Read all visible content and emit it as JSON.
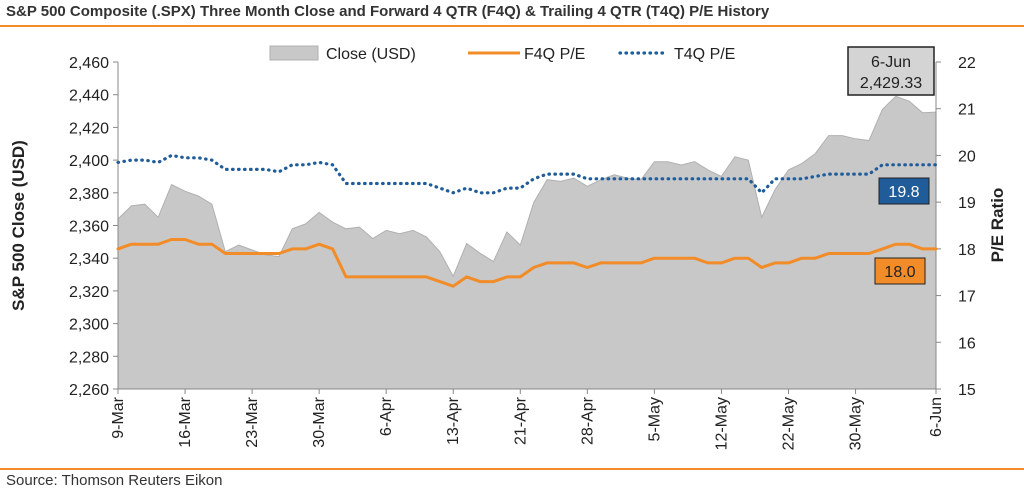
{
  "title": "S&P 500 Composite (.SPX) Three Month Close and Forward 4 QTR (F4Q) & Trailing 4 QTR (T4Q) P/E History",
  "source": "Source: Thomson Reuters Eikon",
  "chart_data": {
    "type": "area",
    "xlabel": "",
    "ylabel": "S&P 500 Close (USD)",
    "y2label": "P/E Ratio",
    "ylim": [
      2260,
      2460
    ],
    "y2lim": [
      15,
      22
    ],
    "yticks": [
      "2,260",
      "2,280",
      "2,300",
      "2,320",
      "2,340",
      "2,360",
      "2,380",
      "2,400",
      "2,420",
      "2,440",
      "2,460"
    ],
    "y2ticks": [
      "15",
      "16",
      "17",
      "18",
      "19",
      "20",
      "21",
      "22"
    ],
    "xtick_labels": [
      "9-Mar",
      "16-Mar",
      "23-Mar",
      "30-Mar",
      "6-Apr",
      "13-Apr",
      "21-Apr",
      "28-Apr",
      "5-May",
      "12-May",
      "22-May",
      "30-May",
      "6-Jun"
    ],
    "xtick_index": [
      0,
      5,
      10,
      15,
      20,
      25,
      30,
      35,
      40,
      45,
      50,
      55,
      61
    ],
    "legend_position": "top",
    "series": [
      {
        "name": "Close (USD)",
        "axis": "left",
        "style": "area",
        "color": "#c8c8c8",
        "values": [
          2364,
          2372,
          2373,
          2365,
          2385,
          2381,
          2378,
          2373,
          2344,
          2348,
          2345,
          2342,
          2341,
          2358,
          2361,
          2368,
          2362,
          2358,
          2359,
          2352,
          2357,
          2355,
          2357,
          2353,
          2344,
          2329,
          2349,
          2343,
          2338,
          2356,
          2348,
          2374,
          2388,
          2387,
          2389,
          2384,
          2388,
          2391,
          2389,
          2388,
          2399,
          2399,
          2397,
          2399,
          2394,
          2390,
          2402,
          2400,
          2365,
          2382,
          2394,
          2398,
          2404,
          2415,
          2415,
          2413,
          2412,
          2431,
          2439,
          2436,
          2429,
          2429.33
        ]
      },
      {
        "name": "F4Q P/E",
        "axis": "right",
        "style": "solid",
        "color": "#f28c28",
        "values": [
          18.0,
          18.1,
          18.1,
          18.1,
          18.2,
          18.2,
          18.1,
          18.1,
          17.9,
          17.9,
          17.9,
          17.9,
          17.9,
          18.0,
          18.0,
          18.1,
          18.0,
          17.4,
          17.4,
          17.4,
          17.4,
          17.4,
          17.4,
          17.4,
          17.3,
          17.2,
          17.4,
          17.3,
          17.3,
          17.4,
          17.4,
          17.6,
          17.7,
          17.7,
          17.7,
          17.6,
          17.7,
          17.7,
          17.7,
          17.7,
          17.8,
          17.8,
          17.8,
          17.8,
          17.7,
          17.7,
          17.8,
          17.8,
          17.6,
          17.7,
          17.7,
          17.8,
          17.8,
          17.9,
          17.9,
          17.9,
          17.9,
          18.0,
          18.1,
          18.1,
          18.0,
          18.0
        ]
      },
      {
        "name": "T4Q P/E",
        "axis": "right",
        "style": "dotted",
        "color": "#1f5c99",
        "values": [
          19.85,
          19.9,
          19.9,
          19.85,
          20.0,
          19.95,
          19.95,
          19.9,
          19.7,
          19.7,
          19.7,
          19.7,
          19.65,
          19.8,
          19.8,
          19.85,
          19.8,
          19.4,
          19.4,
          19.4,
          19.4,
          19.4,
          19.4,
          19.4,
          19.3,
          19.2,
          19.3,
          19.2,
          19.2,
          19.3,
          19.3,
          19.5,
          19.6,
          19.6,
          19.6,
          19.5,
          19.5,
          19.5,
          19.5,
          19.5,
          19.5,
          19.5,
          19.5,
          19.5,
          19.5,
          19.5,
          19.5,
          19.5,
          19.2,
          19.5,
          19.5,
          19.5,
          19.55,
          19.6,
          19.6,
          19.6,
          19.6,
          19.8,
          19.8,
          19.8,
          19.8,
          19.8
        ]
      }
    ],
    "annotations": [
      {
        "label": "6-Jun",
        "value": "2,429.33",
        "series": "Close (USD)"
      },
      {
        "value": "19.8",
        "series": "T4Q P/E",
        "color": "#1f5c99"
      },
      {
        "value": "18.0",
        "series": "F4Q P/E",
        "color": "#f28c28"
      }
    ]
  }
}
